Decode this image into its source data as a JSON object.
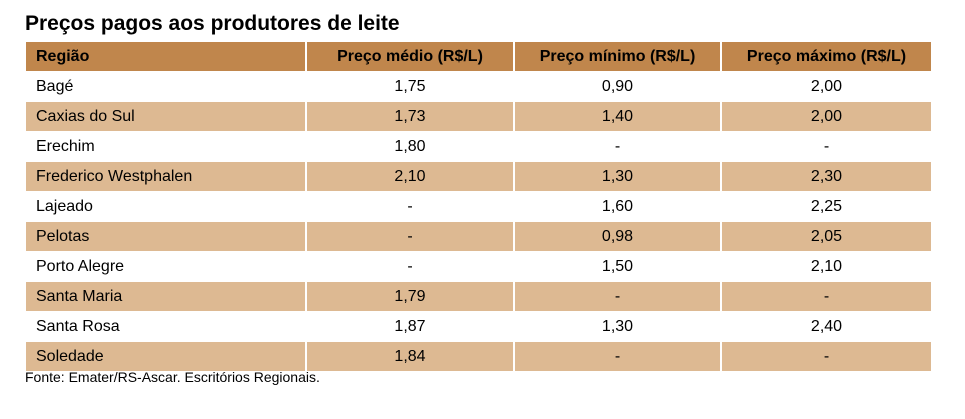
{
  "title": "Preços pagos aos produtores de leite",
  "table": {
    "headers": {
      "region": "Região",
      "avg": "Preço médio (R$/L)",
      "min": "Preço mínimo (R$/L)",
      "max": "Preço máximo (R$/L)"
    },
    "rows": [
      {
        "region": "Bagé",
        "avg": "1,75",
        "min": "0,90",
        "max": "2,00"
      },
      {
        "region": "Caxias do Sul",
        "avg": "1,73",
        "min": "1,40",
        "max": "2,00"
      },
      {
        "region": "Erechim",
        "avg": "1,80",
        "min": "-",
        "max": "-"
      },
      {
        "region": "Frederico Westphalen",
        "avg": "2,10",
        "min": "1,30",
        "max": "2,30"
      },
      {
        "region": "Lajeado",
        "avg": "-",
        "min": "1,60",
        "max": "2,25"
      },
      {
        "region": "Pelotas",
        "avg": "-",
        "min": "0,98",
        "max": "2,05"
      },
      {
        "region": "Porto Alegre",
        "avg": "-",
        "min": "1,50",
        "max": "2,10"
      },
      {
        "region": "Santa Maria",
        "avg": "1,79",
        "min": "-",
        "max": "-"
      },
      {
        "region": "Santa Rosa",
        "avg": "1,87",
        "min": "1,30",
        "max": "2,40"
      },
      {
        "region": "Soledade",
        "avg": "1,84",
        "min": "-",
        "max": "-"
      }
    ]
  },
  "source": "Fonte: Emater/RS-Ascar. Escritórios Regionais.",
  "colors": {
    "header_bg": "#c0864c",
    "alt_row_bg": "#ddb992"
  }
}
